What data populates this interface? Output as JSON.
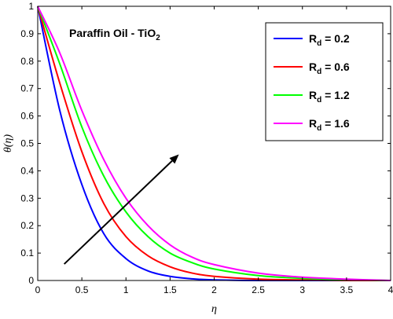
{
  "chart_data": {
    "type": "line",
    "title": "",
    "xlabel": "η",
    "ylabel": "θ(η)",
    "xlim": [
      0,
      4
    ],
    "ylim": [
      0,
      1
    ],
    "xticks": [
      "0",
      "0.5",
      "1",
      "1.5",
      "2",
      "2.5",
      "3",
      "3.5",
      "4"
    ],
    "yticks": [
      "0",
      "0.1",
      "0.2",
      "0.3",
      "0.4",
      "0.5",
      "0.6",
      "0.7",
      "0.8",
      "0.9",
      "1"
    ],
    "grid": false,
    "legend_position": "top-right",
    "annotation": {
      "text_main": "Paraffin Oil - TiO",
      "text_sub": "2"
    },
    "arrow": {
      "from": [
        0.3,
        0.06
      ],
      "to": [
        1.6,
        0.46
      ]
    },
    "series": [
      {
        "name_main": "R",
        "name_sub": "d",
        "name_tail": " = 0.2",
        "color": "#0000ff",
        "x": [
          0,
          0.25,
          0.5,
          0.75,
          1.0,
          1.25,
          1.5,
          1.75,
          2.0,
          2.5,
          3.0,
          3.5,
          4.0
        ],
        "y": [
          1,
          0.62,
          0.35,
          0.17,
          0.08,
          0.035,
          0.015,
          0.006,
          0.002,
          0.0,
          0.0,
          0.0,
          0.0
        ]
      },
      {
        "name_main": "R",
        "name_sub": "d",
        "name_tail": " = 0.6",
        "color": "#ff0000",
        "x": [
          0,
          0.25,
          0.5,
          0.75,
          1.0,
          1.25,
          1.5,
          1.75,
          2.0,
          2.5,
          3.0,
          3.5,
          4.0
        ],
        "y": [
          1,
          0.72,
          0.47,
          0.28,
          0.16,
          0.09,
          0.05,
          0.027,
          0.015,
          0.005,
          0.002,
          0.0,
          0.0
        ]
      },
      {
        "name_main": "R",
        "name_sub": "d",
        "name_tail": " = 1.2",
        "color": "#00ff00",
        "x": [
          0,
          0.25,
          0.5,
          0.75,
          1.0,
          1.25,
          1.5,
          1.75,
          2.0,
          2.5,
          3.0,
          3.5,
          4.0
        ],
        "y": [
          1,
          0.79,
          0.56,
          0.38,
          0.25,
          0.16,
          0.1,
          0.065,
          0.042,
          0.018,
          0.008,
          0.003,
          0.0
        ]
      },
      {
        "name_main": "R",
        "name_sub": "d",
        "name_tail": " = 1.6",
        "color": "#ff00ff",
        "x": [
          0,
          0.25,
          0.5,
          0.75,
          1.0,
          1.25,
          1.5,
          1.75,
          2.0,
          2.5,
          3.0,
          3.5,
          4.0
        ],
        "y": [
          1,
          0.83,
          0.62,
          0.44,
          0.3,
          0.2,
          0.13,
          0.085,
          0.058,
          0.027,
          0.012,
          0.005,
          0.0
        ]
      }
    ]
  }
}
